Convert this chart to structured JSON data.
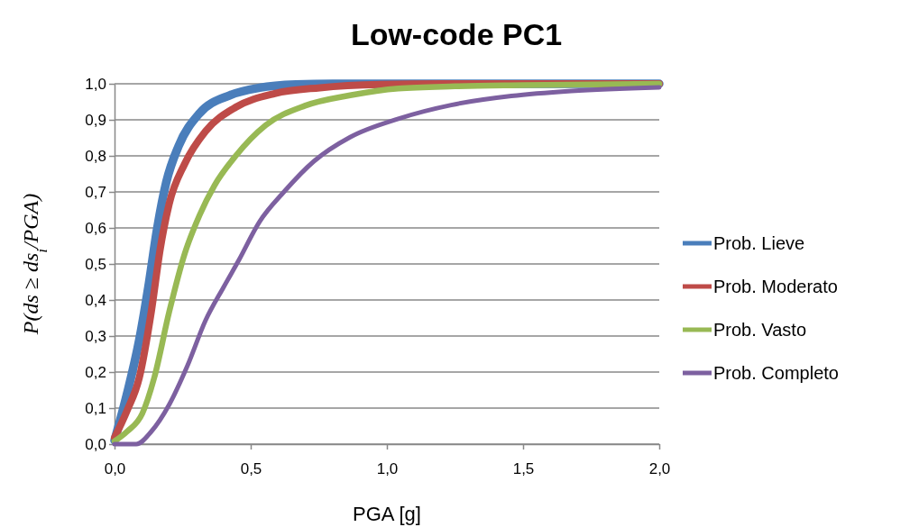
{
  "chart_data": {
    "type": "line",
    "title": "Low-code PC1",
    "xlabel": "PGA [g]",
    "ylabel": "P(ds ≥ ds$_{i}$/PGA)",
    "xlim": [
      0,
      2
    ],
    "ylim": [
      0,
      1
    ],
    "xticks": [
      {
        "value": 0,
        "label": "0,0"
      },
      {
        "value": 0.5,
        "label": "0,5"
      },
      {
        "value": 1,
        "label": "1,0"
      },
      {
        "value": 1.5,
        "label": "1,5"
      },
      {
        "value": 2,
        "label": "2,0"
      }
    ],
    "yticks": [
      {
        "value": 0,
        "label": "0,0"
      },
      {
        "value": 0.1,
        "label": "0,1"
      },
      {
        "value": 0.2,
        "label": "0,2"
      },
      {
        "value": 0.3,
        "label": "0,3"
      },
      {
        "value": 0.4,
        "label": "0,4"
      },
      {
        "value": 0.5,
        "label": "0,5"
      },
      {
        "value": 0.6,
        "label": "0,6"
      },
      {
        "value": 0.7,
        "label": "0,7"
      },
      {
        "value": 0.8,
        "label": "0,8"
      },
      {
        "value": 0.9,
        "label": "0,9"
      },
      {
        "value": 1,
        "label": "1,0"
      }
    ],
    "grid": "y",
    "legend": "right",
    "marker": "none",
    "line_style": "solid",
    "series": [
      {
        "name": "Prob. Lieve",
        "color": "#4a7ebb",
        "x": [
          0,
          0.046,
          0.091,
          0.124,
          0.157,
          0.19,
          0.235,
          0.312,
          0.423,
          0.533,
          0.666,
          0.8,
          1.0,
          1.5,
          2.0
        ],
        "values": [
          0.01,
          0.14,
          0.29,
          0.435,
          0.6,
          0.727,
          0.827,
          0.918,
          0.968,
          0.989,
          0.998,
          1,
          1,
          1,
          1
        ]
      },
      {
        "name": "Prob. Moderato",
        "color": "#be4b48",
        "x": [
          0,
          0.046,
          0.091,
          0.135,
          0.168,
          0.201,
          0.257,
          0.334,
          0.445,
          0.588,
          0.754,
          0.976,
          1.2,
          1.5,
          2.0
        ],
        "values": [
          0.018,
          0.093,
          0.185,
          0.368,
          0.543,
          0.668,
          0.777,
          0.868,
          0.935,
          0.973,
          0.989,
          0.998,
          1,
          1,
          1
        ]
      },
      {
        "name": "Prob. Vasto",
        "color": "#98b954",
        "x": [
          0,
          0.046,
          0.102,
          0.146,
          0.201,
          0.257,
          0.312,
          0.367,
          0.445,
          0.555,
          0.699,
          0.865,
          1.042,
          1.25,
          1.5,
          2.0
        ],
        "values": [
          0.008,
          0.035,
          0.085,
          0.185,
          0.368,
          0.527,
          0.635,
          0.718,
          0.8,
          0.885,
          0.939,
          0.968,
          0.987,
          0.993,
          0.996,
          1
        ]
      },
      {
        "name": "Prob. Completo",
        "color": "#7d60a0",
        "x": [
          0,
          0.08,
          0.135,
          0.201,
          0.268,
          0.334,
          0.4,
          0.456,
          0.533,
          0.622,
          0.732,
          0.865,
          1.042,
          1.236,
          1.457,
          1.677,
          2.0
        ],
        "values": [
          0,
          0,
          0.035,
          0.11,
          0.218,
          0.343,
          0.435,
          0.51,
          0.618,
          0.7,
          0.785,
          0.852,
          0.903,
          0.941,
          0.966,
          0.98,
          0.99
        ]
      }
    ]
  }
}
